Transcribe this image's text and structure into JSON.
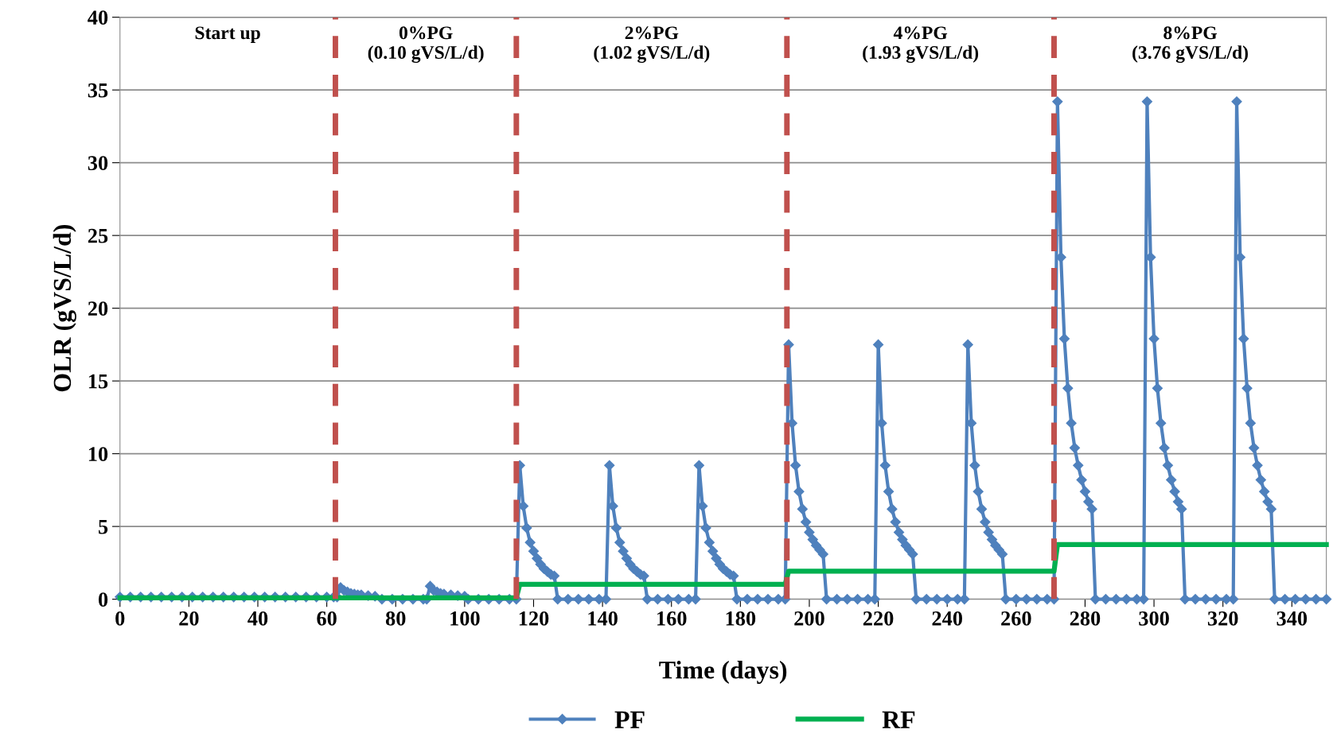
{
  "chart_data": {
    "type": "line",
    "xlabel": "Time (days)",
    "ylabel": "OLR (gVS/L/d)",
    "xlim": [
      0,
      350
    ],
    "xticks": [
      0,
      20,
      40,
      60,
      80,
      100,
      120,
      140,
      160,
      180,
      200,
      220,
      240,
      260,
      280,
      300,
      320,
      340
    ],
    "ylim": [
      0,
      40
    ],
    "yticks": [
      0,
      5,
      10,
      15,
      20,
      25,
      30,
      35,
      40
    ],
    "grid": "y",
    "legend": "bottom",
    "series": [
      {
        "name": "PF",
        "color": "#4f81bd",
        "marker": "diamond",
        "line_style": "solid",
        "x": [
          0,
          3,
          6,
          9,
          12,
          15,
          18,
          21,
          24,
          27,
          30,
          33,
          36,
          39,
          42,
          45,
          48,
          51,
          54,
          57,
          60,
          62,
          63,
          64,
          65,
          66,
          67,
          68,
          69,
          70,
          72,
          74,
          76,
          79,
          82,
          85,
          88,
          89,
          90,
          91,
          92,
          93,
          94,
          96,
          98,
          100,
          101,
          104,
          107,
          110,
          113,
          115,
          116,
          117,
          118,
          119,
          120,
          121,
          122,
          123,
          124,
          125,
          126,
          127,
          130,
          133,
          136,
          139,
          141,
          142,
          143,
          144,
          145,
          146,
          147,
          148,
          149,
          150,
          151,
          152,
          153,
          156,
          159,
          162,
          165,
          167,
          168,
          169,
          170,
          171,
          172,
          173,
          174,
          175,
          176,
          177,
          178,
          179,
          182,
          185,
          188,
          191,
          193,
          194,
          195,
          196,
          197,
          198,
          199,
          200,
          201,
          202,
          203,
          204,
          205,
          208,
          211,
          214,
          217,
          219,
          220,
          221,
          222,
          223,
          224,
          225,
          226,
          227,
          228,
          229,
          230,
          231,
          234,
          237,
          240,
          243,
          245,
          246,
          247,
          248,
          249,
          250,
          251,
          252,
          253,
          254,
          255,
          256,
          257,
          260,
          263,
          266,
          269,
          271,
          272,
          273,
          274,
          275,
          276,
          277,
          278,
          279,
          280,
          281,
          282,
          283,
          286,
          289,
          292,
          295,
          297,
          298,
          299,
          300,
          301,
          302,
          303,
          304,
          305,
          306,
          307,
          308,
          309,
          312,
          315,
          318,
          321,
          323,
          324,
          325,
          326,
          327,
          328,
          329,
          330,
          331,
          332,
          333,
          334,
          335,
          338,
          341,
          344,
          347,
          350
        ],
        "values": [
          0.15,
          0.15,
          0.15,
          0.15,
          0.15,
          0.15,
          0.15,
          0.15,
          0.15,
          0.15,
          0.15,
          0.15,
          0.15,
          0.15,
          0.15,
          0.15,
          0.15,
          0.15,
          0.15,
          0.15,
          0.15,
          0.15,
          0.15,
          0.8,
          0.6,
          0.5,
          0.4,
          0.35,
          0.3,
          0.3,
          0.25,
          0.2,
          0,
          0,
          0,
          0,
          0,
          0,
          0.9,
          0.6,
          0.5,
          0.4,
          0.35,
          0.3,
          0.25,
          0.2,
          0,
          0,
          0,
          0,
          0,
          0,
          9.2,
          6.4,
          4.9,
          3.9,
          3.3,
          2.8,
          2.4,
          2.1,
          1.9,
          1.7,
          1.6,
          0,
          0,
          0,
          0,
          0,
          0,
          9.2,
          6.4,
          4.9,
          3.9,
          3.3,
          2.8,
          2.4,
          2.1,
          1.9,
          1.7,
          1.6,
          0,
          0,
          0,
          0,
          0,
          0,
          9.2,
          6.4,
          4.9,
          3.9,
          3.3,
          2.8,
          2.4,
          2.1,
          1.9,
          1.7,
          1.6,
          0,
          0,
          0,
          0,
          0,
          0,
          17.5,
          12.1,
          9.2,
          7.4,
          6.2,
          5.3,
          4.6,
          4.1,
          3.7,
          3.4,
          3.1,
          0,
          0,
          0,
          0,
          0,
          0,
          17.5,
          12.1,
          9.2,
          7.4,
          6.2,
          5.3,
          4.6,
          4.1,
          3.7,
          3.4,
          3.1,
          0,
          0,
          0,
          0,
          0,
          0,
          17.5,
          12.1,
          9.2,
          7.4,
          6.2,
          5.3,
          4.6,
          4.1,
          3.7,
          3.4,
          3.1,
          0,
          0,
          0,
          0,
          0,
          0,
          34.2,
          23.5,
          17.9,
          14.5,
          12.1,
          10.4,
          9.2,
          8.2,
          7.4,
          6.7,
          6.2,
          0,
          0,
          0,
          0,
          0,
          0,
          34.2,
          23.5,
          17.9,
          14.5,
          12.1,
          10.4,
          9.2,
          8.2,
          7.4,
          6.7,
          6.2,
          0,
          0,
          0,
          0,
          0,
          0,
          34.2,
          23.5,
          17.9,
          14.5,
          12.1,
          10.4,
          9.2,
          8.2,
          7.4,
          6.7,
          6.2,
          0,
          0,
          0,
          0,
          0,
          0
        ]
      },
      {
        "name": "RF",
        "color": "#00b050",
        "marker": "none",
        "line_style": "solid",
        "x": [
          0,
          115,
          116,
          193,
          194,
          271,
          272,
          350
        ],
        "values": [
          0.1,
          0.1,
          1.02,
          1.02,
          1.93,
          1.93,
          3.76,
          3.76
        ]
      }
    ],
    "ref_lines": [
      {
        "axis": "x",
        "value": 62.5,
        "color": "#c0504d",
        "line_style": "dashed"
      },
      {
        "axis": "x",
        "value": 115,
        "color": "#c0504d",
        "line_style": "dashed"
      },
      {
        "axis": "x",
        "value": 193.5,
        "color": "#c0504d",
        "line_style": "dashed"
      },
      {
        "axis": "x",
        "value": 271,
        "color": "#c0504d",
        "line_style": "dashed"
      }
    ],
    "annotations": [
      "Start up",
      "0%PG\n(0.10 gVS/L/d)",
      "2%PG\n(1.02 gVS/L/d)",
      "4%PG\n(1.93 gVS/L/d)",
      "8%PG\n(3.76 gVS/L/d)"
    ]
  }
}
